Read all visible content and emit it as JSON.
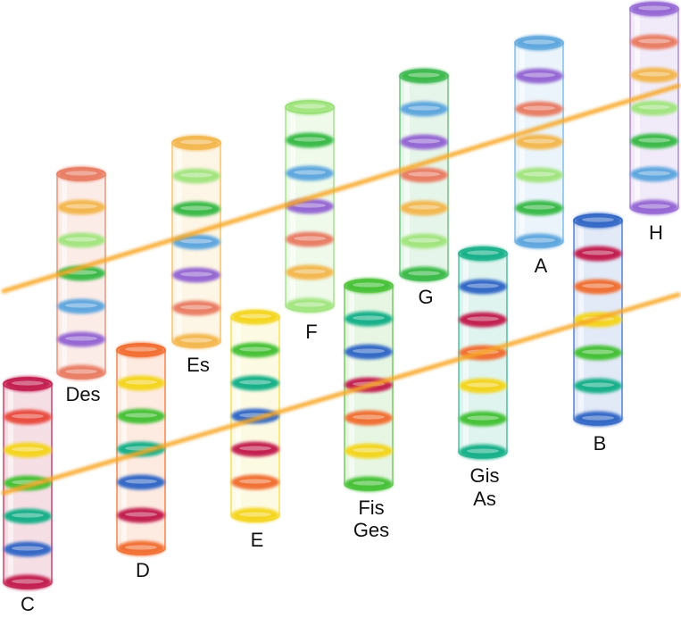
{
  "background": "#ffffff",
  "line_color": "#f7a624",
  "tubes": [
    {
      "key": "C",
      "label_lines": [
        "C"
      ],
      "tint": "#c0184a",
      "rings": [
        "#c0184a",
        "#e8463a",
        "#f3d417",
        "#3fbf2e",
        "#12ad84",
        "#2a62c4",
        "#c0184a"
      ]
    },
    {
      "key": "Des",
      "label_lines": [
        "Des"
      ],
      "tint": "#e77a5f",
      "rings": [
        "#e8795f",
        "#f2b44a",
        "#9fe47b",
        "#33b742",
        "#58a3dd",
        "#9061d2",
        "#e8795f"
      ]
    },
    {
      "key": "D",
      "label_lines": [
        "D"
      ],
      "tint": "#f06a2a",
      "rings": [
        "#f06a2a",
        "#f3d417",
        "#3fbf2e",
        "#12ad84",
        "#2a62c4",
        "#c0184a",
        "#f06a2a"
      ]
    },
    {
      "key": "Es",
      "label_lines": [
        "Es"
      ],
      "tint": "#f1b64a",
      "rings": [
        "#f2b44a",
        "#9fe47b",
        "#33b742",
        "#58a3dd",
        "#9061d2",
        "#e8795f",
        "#f2b44a"
      ]
    },
    {
      "key": "E",
      "label_lines": [
        "E"
      ],
      "tint": "#f3d93a",
      "rings": [
        "#f3d417",
        "#3fbf2e",
        "#12ad84",
        "#2a62c4",
        "#c0184a",
        "#f06a2a",
        "#f3d417"
      ]
    },
    {
      "key": "F",
      "label_lines": [
        "F"
      ],
      "tint": "#8fdc6e",
      "rings": [
        "#9fe47b",
        "#33b742",
        "#58a3dd",
        "#9061d2",
        "#e8795f",
        "#f2b44a",
        "#9fe47b"
      ]
    },
    {
      "key": "Fis",
      "label_lines": [
        "Fis",
        "Ges"
      ],
      "tint": "#52c23a",
      "rings": [
        "#3fbf2e",
        "#12ad84",
        "#2a62c4",
        "#c0184a",
        "#f06a2a",
        "#f3d417",
        "#3fbf2e"
      ]
    },
    {
      "key": "G",
      "label_lines": [
        "G"
      ],
      "tint": "#4cb865",
      "rings": [
        "#33b742",
        "#58a3dd",
        "#9061d2",
        "#e8795f",
        "#f2b44a",
        "#9fe47b",
        "#33b742"
      ]
    },
    {
      "key": "Gis",
      "label_lines": [
        "Gis",
        "As"
      ],
      "tint": "#22b38c",
      "rings": [
        "#12ad84",
        "#2a62c4",
        "#c0184a",
        "#f06a2a",
        "#f3d417",
        "#3fbf2e",
        "#12ad84"
      ]
    },
    {
      "key": "A",
      "label_lines": [
        "A"
      ],
      "tint": "#6aaedf",
      "rings": [
        "#58a3dd",
        "#9061d2",
        "#e8795f",
        "#f2b44a",
        "#9fe47b",
        "#33b742",
        "#58a3dd"
      ]
    },
    {
      "key": "B",
      "label_lines": [
        "B"
      ],
      "tint": "#2f64c6",
      "rings": [
        "#2a62c4",
        "#c0184a",
        "#f06a2a",
        "#f3d417",
        "#3fbf2e",
        "#12ad84",
        "#2a62c4"
      ]
    },
    {
      "key": "H",
      "label_lines": [
        "H"
      ],
      "tint": "#9a6fd6",
      "rings": [
        "#9061d2",
        "#e8795f",
        "#f2b44a",
        "#9fe47b",
        "#33b742",
        "#58a3dd",
        "#9061d2"
      ]
    }
  ]
}
